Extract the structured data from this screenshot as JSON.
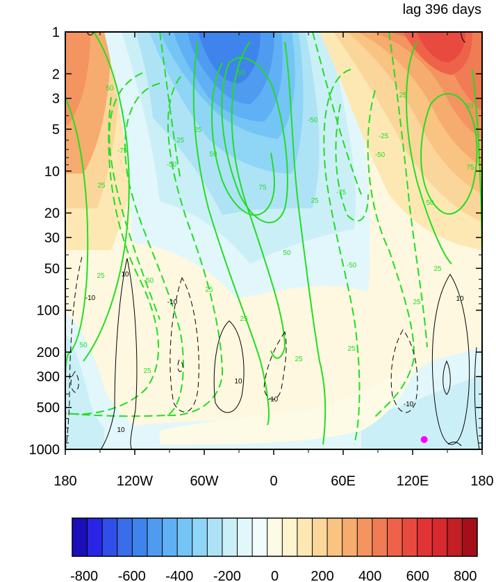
{
  "chart_data": {
    "type": "heatmap",
    "title": "lag 396 days",
    "x_ticks": [
      "180",
      "120W",
      "60W",
      "0",
      "60E",
      "120E",
      "180"
    ],
    "y_ticks": [
      "1",
      "2",
      "3",
      "5",
      "10",
      "20",
      "30",
      "50",
      "100",
      "200",
      "300",
      "500",
      "1000"
    ],
    "y_scale": "log",
    "y_inverted": true,
    "xlim": [
      -180,
      180
    ],
    "ylim": [
      1000,
      1
    ],
    "colorbar_labels": [
      "-800",
      "-600",
      "-400",
      "-200",
      "0",
      "200",
      "400",
      "600",
      "800"
    ],
    "colorbar_range": [
      -850,
      850
    ],
    "colorbar_step": 50,
    "colors": [
      "#1a0fb8",
      "#2a25e6",
      "#2f4fe8",
      "#3a6de8",
      "#3f84ec",
      "#4f9bf0",
      "#5fb0f4",
      "#75c4f6",
      "#8fd5f5",
      "#aee3f6",
      "#cbeff7",
      "#e2f7fb",
      "#f2fcfd",
      "#fdfbe6",
      "#fdf3cc",
      "#fde8b4",
      "#fbd69a",
      "#f9c381",
      "#f6ac6e",
      "#f39461",
      "#f07c55",
      "#ee6249",
      "#e94a3f",
      "#e23337",
      "#d72a2f",
      "#c21f27",
      "#a50f1a"
    ],
    "shading_field": [
      {
        "lon": -160,
        "p": 4,
        "value": 500
      },
      {
        "lon": -40,
        "p": 2,
        "value": -520
      },
      {
        "lon": -35,
        "p": 6,
        "value": -380
      },
      {
        "lon": 130,
        "p": 2,
        "value": 600
      },
      {
        "lon": 140,
        "p": 8,
        "value": 380
      },
      {
        "lon": 20,
        "p": 80,
        "value": -120
      },
      {
        "lon": -150,
        "p": 300,
        "value": -60
      },
      {
        "lon": 20,
        "p": 600,
        "value": 60
      }
    ],
    "green_contour_labels": [
      "25",
      "50",
      "75",
      "-25",
      "-50",
      "-75"
    ],
    "black_contour_labels": [
      "10",
      "-10"
    ],
    "marker": {
      "lon": 130,
      "p": 850,
      "color": "#ff00ff"
    }
  }
}
